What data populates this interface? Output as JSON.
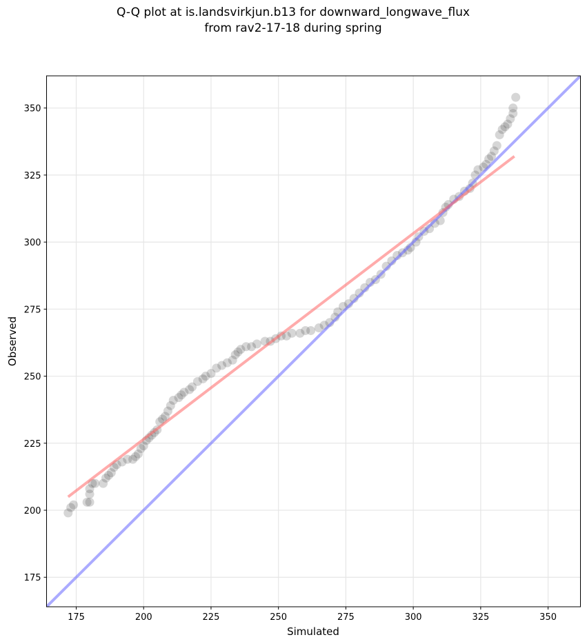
{
  "chart_data": {
    "type": "scatter",
    "title_line1": "Q-Q plot at is.landsvirkjun.b13 for downward_longwave_flux",
    "title_line2": "from rav2-17-18 during spring",
    "xlabel": "Simulated",
    "ylabel": "Observed",
    "xlim": [
      164,
      362
    ],
    "ylim": [
      164,
      362
    ],
    "xticks": [
      175,
      200,
      225,
      250,
      275,
      300,
      325,
      350
    ],
    "yticks": [
      175,
      200,
      225,
      250,
      275,
      300,
      325,
      350
    ],
    "grid": true,
    "colors": {
      "points": "#333333",
      "fit_line": "#ff6666",
      "identity_line": "#6666ff"
    },
    "fit_line": {
      "x": [
        172,
        337.5
      ],
      "y": [
        205,
        332
      ]
    },
    "identity_line": {
      "x": [
        164,
        362
      ],
      "y": [
        164,
        362
      ]
    },
    "points": [
      [
        172,
        199
      ],
      [
        173,
        201
      ],
      [
        174,
        202
      ],
      [
        179,
        203
      ],
      [
        180,
        203
      ],
      [
        180,
        206
      ],
      [
        180,
        208
      ],
      [
        181,
        210
      ],
      [
        182,
        210
      ],
      [
        185,
        210
      ],
      [
        186,
        212
      ],
      [
        187,
        213
      ],
      [
        188,
        214
      ],
      [
        189,
        216
      ],
      [
        190,
        217
      ],
      [
        192,
        218
      ],
      [
        194,
        219
      ],
      [
        196,
        219
      ],
      [
        197,
        220
      ],
      [
        198,
        221
      ],
      [
        199,
        223
      ],
      [
        200,
        224
      ],
      [
        201,
        226
      ],
      [
        202,
        227
      ],
      [
        203,
        228
      ],
      [
        204,
        229
      ],
      [
        205,
        230
      ],
      [
        206,
        233
      ],
      [
        207,
        234
      ],
      [
        208,
        235
      ],
      [
        209,
        237
      ],
      [
        210,
        239
      ],
      [
        211,
        241
      ],
      [
        213,
        242
      ],
      [
        214,
        243
      ],
      [
        215,
        244
      ],
      [
        217,
        245
      ],
      [
        218,
        246
      ],
      [
        220,
        248
      ],
      [
        222,
        249
      ],
      [
        223,
        250
      ],
      [
        225,
        251
      ],
      [
        227,
        253
      ],
      [
        229,
        254
      ],
      [
        231,
        255
      ],
      [
        233,
        256
      ],
      [
        234,
        258
      ],
      [
        235,
        259
      ],
      [
        236,
        260
      ],
      [
        238,
        261
      ],
      [
        240,
        261
      ],
      [
        242,
        262
      ],
      [
        245,
        263
      ],
      [
        247,
        263
      ],
      [
        249,
        264
      ],
      [
        251,
        265
      ],
      [
        253,
        265
      ],
      [
        255,
        266
      ],
      [
        258,
        266
      ],
      [
        260,
        267
      ],
      [
        262,
        267
      ],
      [
        265,
        268
      ],
      [
        267,
        269
      ],
      [
        269,
        270
      ],
      [
        271,
        272
      ],
      [
        272,
        274
      ],
      [
        274,
        276
      ],
      [
        276,
        277
      ],
      [
        278,
        279
      ],
      [
        280,
        281
      ],
      [
        282,
        283
      ],
      [
        284,
        285
      ],
      [
        286,
        286
      ],
      [
        288,
        288
      ],
      [
        290,
        291
      ],
      [
        292,
        293
      ],
      [
        294,
        295
      ],
      [
        296,
        296
      ],
      [
        298,
        297
      ],
      [
        299,
        298
      ],
      [
        301,
        300
      ],
      [
        302,
        302
      ],
      [
        304,
        304
      ],
      [
        306,
        305
      ],
      [
        308,
        307
      ],
      [
        310,
        308
      ],
      [
        311,
        311
      ],
      [
        312,
        313
      ],
      [
        313,
        314
      ],
      [
        315,
        316
      ],
      [
        317,
        317
      ],
      [
        319,
        319
      ],
      [
        321,
        320
      ],
      [
        322,
        322
      ],
      [
        323,
        325
      ],
      [
        324,
        327
      ],
      [
        326,
        328
      ],
      [
        327,
        329
      ],
      [
        328,
        331
      ],
      [
        329,
        332
      ],
      [
        330,
        334
      ],
      [
        331,
        336
      ],
      [
        332,
        340
      ],
      [
        333,
        342
      ],
      [
        334,
        343
      ],
      [
        335,
        344
      ],
      [
        336,
        346
      ],
      [
        337,
        348
      ],
      [
        337,
        350
      ],
      [
        338,
        354
      ]
    ]
  }
}
